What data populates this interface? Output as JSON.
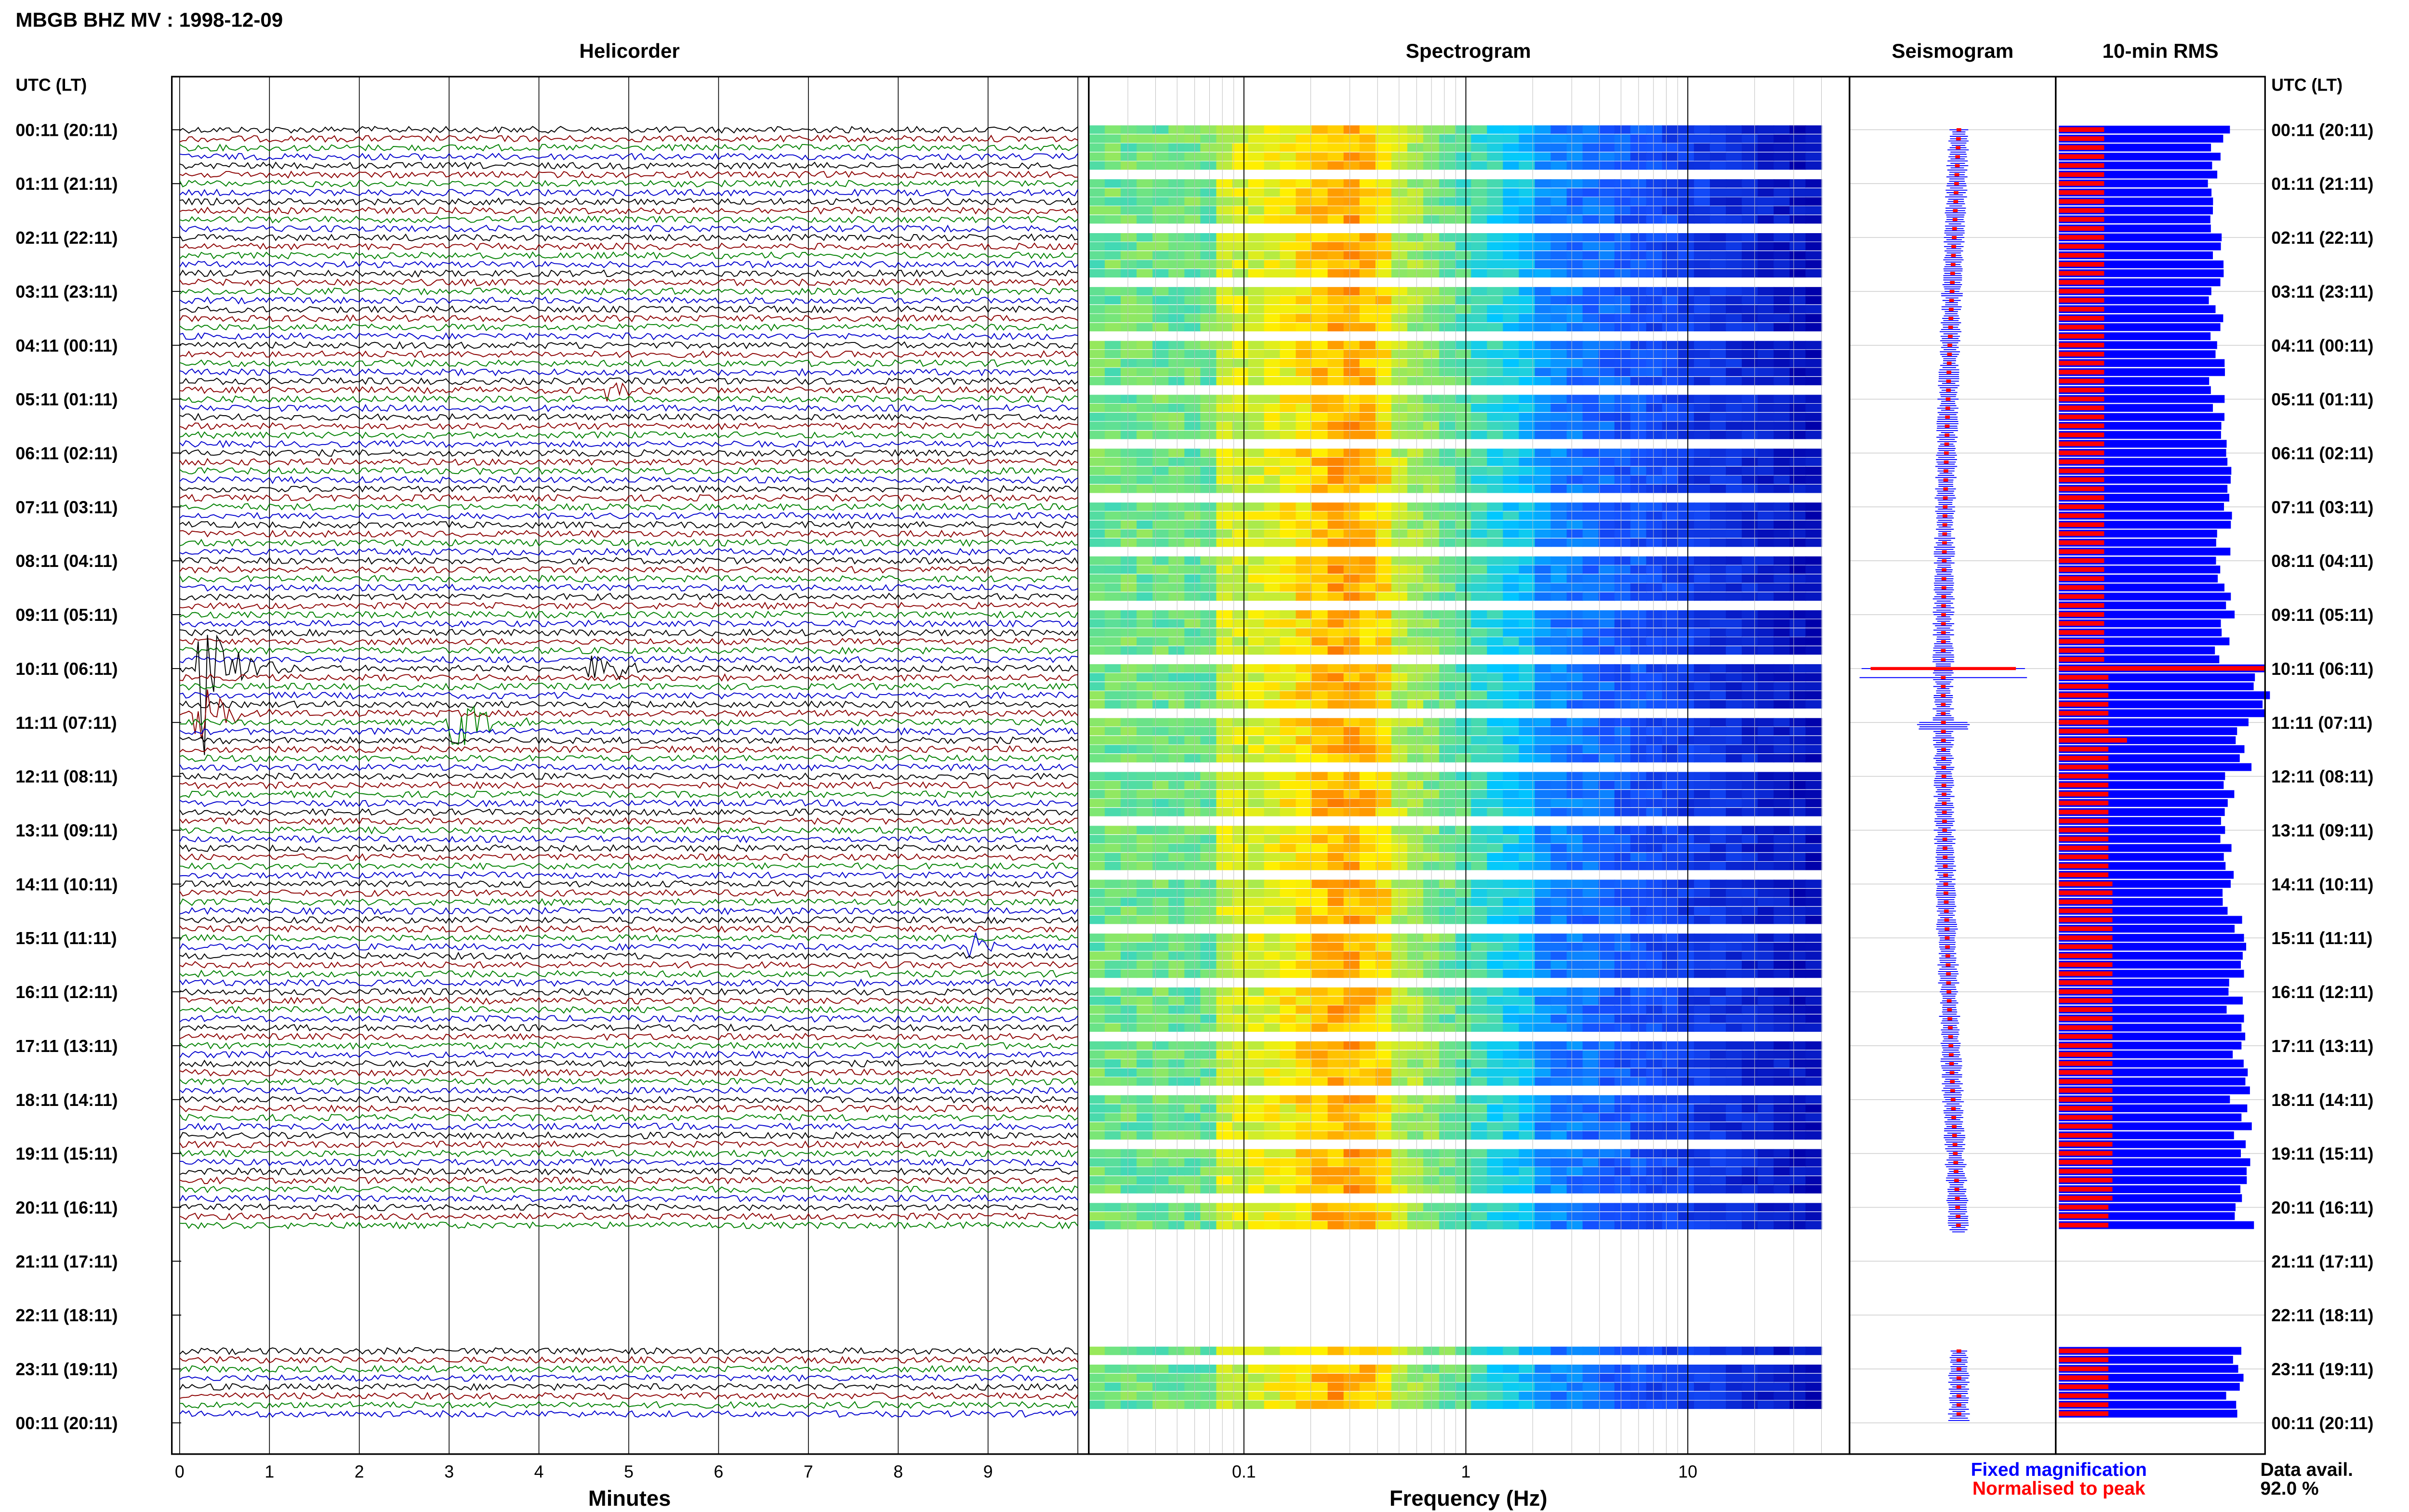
{
  "title": "MBGB BHZ MV : 1998-12-09",
  "panels": {
    "helicorder": "Helicorder",
    "spectrogram": "Spectrogram",
    "seismogram": "Seismogram",
    "rms": "10-min RMS"
  },
  "time_axis_label": "UTC (LT)",
  "time_labels": [
    "00:11 (20:11)",
    "01:11 (21:11)",
    "02:11 (22:11)",
    "03:11 (23:11)",
    "04:11 (00:11)",
    "05:11 (01:11)",
    "06:11 (02:11)",
    "07:11 (03:11)",
    "08:11 (04:11)",
    "09:11 (05:11)",
    "10:11 (06:11)",
    "11:11 (07:11)",
    "12:11 (08:11)",
    "13:11 (09:11)",
    "14:11 (10:11)",
    "15:11 (11:11)",
    "16:11 (12:11)",
    "17:11 (13:11)",
    "18:11 (14:11)",
    "19:11 (15:11)",
    "20:11 (16:11)",
    "21:11 (17:11)",
    "22:11 (18:11)",
    "23:11 (19:11)",
    "00:11 (20:11)"
  ],
  "x_axes": {
    "helicorder": {
      "label": "Minutes",
      "ticks": [
        "0",
        "1",
        "2",
        "3",
        "4",
        "5",
        "6",
        "7",
        "8",
        "9"
      ]
    },
    "spectrogram": {
      "label": "Frequency (Hz)",
      "ticks": [
        "0.1",
        "1",
        "10"
      ]
    }
  },
  "legend": {
    "fixed": "Fixed magnification",
    "normalised": "Normalised to peak",
    "fixed_color": "#0000ff",
    "normalised_color": "#ff0000"
  },
  "data_availability": {
    "label": "Data avail.",
    "value": "92.0 %"
  },
  "colors": {
    "trace_cycle": [
      "#000000",
      "#8b0000",
      "#008000",
      "#0000cd"
    ],
    "spectrogram_low": "#0000cc",
    "spectrogram_high": "#ff2000",
    "rms_fixed": "#0000ff",
    "rms_normalised": "#ff0000"
  },
  "chart_data": {
    "type": "heatmap",
    "title": "MBGB BHZ MV : 1998-12-09",
    "rows_per_hour": 6,
    "gap": {
      "from_row": 123,
      "to_row": 135
    },
    "events": [
      {
        "row": 60,
        "minute": 0.25,
        "amplitude": 3.2
      },
      {
        "row": 65,
        "minute": 0.2,
        "amplitude": 1.6
      },
      {
        "row": 66,
        "minute": 3.0,
        "amplitude": 1.6
      },
      {
        "row": 60,
        "minute": 4.6,
        "amplitude": 0.9
      },
      {
        "row": 29,
        "minute": 4.8,
        "amplitude": 0.4
      },
      {
        "row": 91,
        "minute": 8.8,
        "amplitude": 0.5
      }
    ],
    "rms_hourly": {
      "hours": [
        "00",
        "01",
        "02",
        "03",
        "04",
        "05",
        "06",
        "07",
        "08",
        "09",
        "10",
        "11",
        "12",
        "13",
        "14",
        "15",
        "16",
        "17",
        "18",
        "19",
        "20",
        "21",
        "22",
        "23"
      ],
      "fixed": [
        0.8,
        0.78,
        0.78,
        0.78,
        0.78,
        0.8,
        0.82,
        0.82,
        0.82,
        0.82,
        1.0,
        0.9,
        0.84,
        0.84,
        0.86,
        0.88,
        0.88,
        0.9,
        0.9,
        0.92,
        0.92,
        null,
        0.88,
        0.88
      ],
      "normalised": [
        0.22,
        0.22,
        0.22,
        0.22,
        0.22,
        0.22,
        0.22,
        0.22,
        0.22,
        0.22,
        0.24,
        0.24,
        0.24,
        0.24,
        0.26,
        0.26,
        0.26,
        0.26,
        0.26,
        0.26,
        0.24,
        null,
        0.24,
        0.24
      ]
    },
    "spectrogram_freq_range_hz": [
      0.02,
      40
    ],
    "helicorder_minutes_range": [
      0,
      10
    ]
  }
}
